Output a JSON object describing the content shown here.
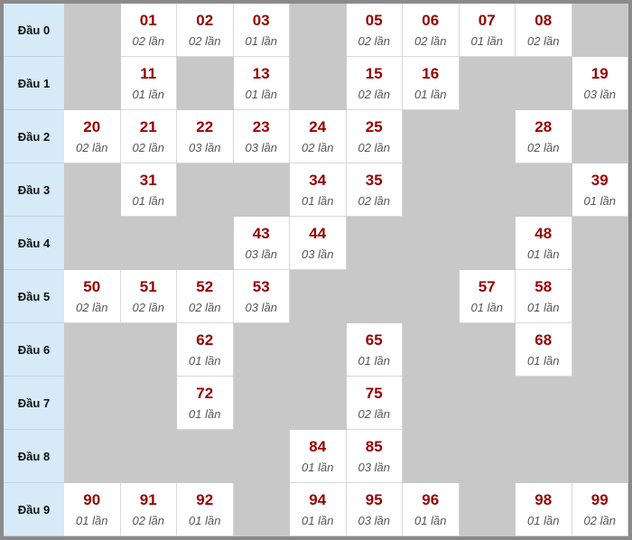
{
  "colors": {
    "header_bg": "#d6eaf8",
    "number": "#990000",
    "empty_cell": "#c8c8c8",
    "border": "#8a8a8a"
  },
  "rows": [
    {
      "label": "Đầu 0",
      "cells": [
        null,
        {
          "num": "01",
          "count": "02 lần"
        },
        {
          "num": "02",
          "count": "02 lần"
        },
        {
          "num": "03",
          "count": "01 lần"
        },
        null,
        {
          "num": "05",
          "count": "02 lần"
        },
        {
          "num": "06",
          "count": "02 lần"
        },
        {
          "num": "07",
          "count": "01 lần"
        },
        {
          "num": "08",
          "count": "02 lần"
        },
        null
      ]
    },
    {
      "label": "Đầu 1",
      "cells": [
        null,
        {
          "num": "11",
          "count": "01 lần"
        },
        null,
        {
          "num": "13",
          "count": "01 lần"
        },
        null,
        {
          "num": "15",
          "count": "02 lần"
        },
        {
          "num": "16",
          "count": "01 lần"
        },
        null,
        null,
        {
          "num": "19",
          "count": "03 lần"
        }
      ]
    },
    {
      "label": "Đầu 2",
      "cells": [
        {
          "num": "20",
          "count": "02 lần"
        },
        {
          "num": "21",
          "count": "02 lần"
        },
        {
          "num": "22",
          "count": "03 lần"
        },
        {
          "num": "23",
          "count": "03 lần"
        },
        {
          "num": "24",
          "count": "02 lần"
        },
        {
          "num": "25",
          "count": "02 lần"
        },
        null,
        null,
        {
          "num": "28",
          "count": "02 lần"
        },
        null
      ]
    },
    {
      "label": "Đầu 3",
      "cells": [
        null,
        {
          "num": "31",
          "count": "01 lần"
        },
        null,
        null,
        {
          "num": "34",
          "count": "01 lần"
        },
        {
          "num": "35",
          "count": "02 lần"
        },
        null,
        null,
        null,
        {
          "num": "39",
          "count": "01 lần"
        }
      ]
    },
    {
      "label": "Đầu 4",
      "cells": [
        null,
        null,
        null,
        {
          "num": "43",
          "count": "03 lần"
        },
        {
          "num": "44",
          "count": "03 lần"
        },
        null,
        null,
        null,
        {
          "num": "48",
          "count": "01 lần"
        },
        null
      ]
    },
    {
      "label": "Đầu 5",
      "cells": [
        {
          "num": "50",
          "count": "02 lần"
        },
        {
          "num": "51",
          "count": "02 lần"
        },
        {
          "num": "52",
          "count": "02 lần"
        },
        {
          "num": "53",
          "count": "03 lần"
        },
        null,
        null,
        null,
        {
          "num": "57",
          "count": "01 lần"
        },
        {
          "num": "58",
          "count": "01 lần"
        },
        null
      ]
    },
    {
      "label": "Đầu 6",
      "cells": [
        null,
        null,
        {
          "num": "62",
          "count": "01 lần"
        },
        null,
        null,
        {
          "num": "65",
          "count": "01 lần"
        },
        null,
        null,
        {
          "num": "68",
          "count": "01 lần"
        },
        null
      ]
    },
    {
      "label": "Đầu 7",
      "cells": [
        null,
        null,
        {
          "num": "72",
          "count": "01 lần"
        },
        null,
        null,
        {
          "num": "75",
          "count": "02 lần"
        },
        null,
        null,
        null,
        null
      ]
    },
    {
      "label": "Đầu 8",
      "cells": [
        null,
        null,
        null,
        null,
        {
          "num": "84",
          "count": "01 lần"
        },
        {
          "num": "85",
          "count": "03 lần"
        },
        null,
        null,
        null,
        null
      ]
    },
    {
      "label": "Đầu 9",
      "cells": [
        {
          "num": "90",
          "count": "01 lần"
        },
        {
          "num": "91",
          "count": "02 lần"
        },
        {
          "num": "92",
          "count": "01 lần"
        },
        null,
        {
          "num": "94",
          "count": "01 lần"
        },
        {
          "num": "95",
          "count": "03 lần"
        },
        {
          "num": "96",
          "count": "01 lần"
        },
        null,
        {
          "num": "98",
          "count": "01 lần"
        },
        {
          "num": "99",
          "count": "02 lần"
        }
      ]
    }
  ]
}
